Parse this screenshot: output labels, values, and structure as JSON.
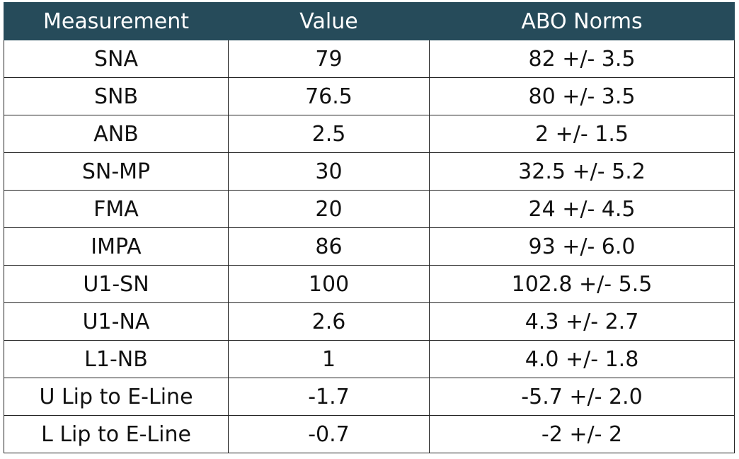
{
  "table": {
    "header": [
      "Measurement",
      "Value",
      "ABO Norms"
    ],
    "rows": [
      [
        "SNA",
        "79",
        "82 +/- 3.5"
      ],
      [
        "SNB",
        "76.5",
        "80 +/- 3.5"
      ],
      [
        "ANB",
        "2.5",
        "2 +/- 1.5"
      ],
      [
        "SN-MP",
        "30",
        "32.5 +/- 5.2"
      ],
      [
        "FMA",
        "20",
        "24 +/- 4.5"
      ],
      [
        "IMPA",
        "86",
        "93 +/- 6.0"
      ],
      [
        "U1-SN",
        "100",
        "102.8 +/- 5.5"
      ],
      [
        "U1-NA",
        "2.6",
        "4.3 +/- 2.7"
      ],
      [
        "L1-NB",
        "1",
        "4.0 +/- 1.8"
      ],
      [
        "U Lip to E-Line",
        "-1.7",
        "-5.7 +/- 2.0"
      ],
      [
        "L Lip to E-Line",
        "-0.7",
        "-2 +/- 2"
      ]
    ]
  }
}
